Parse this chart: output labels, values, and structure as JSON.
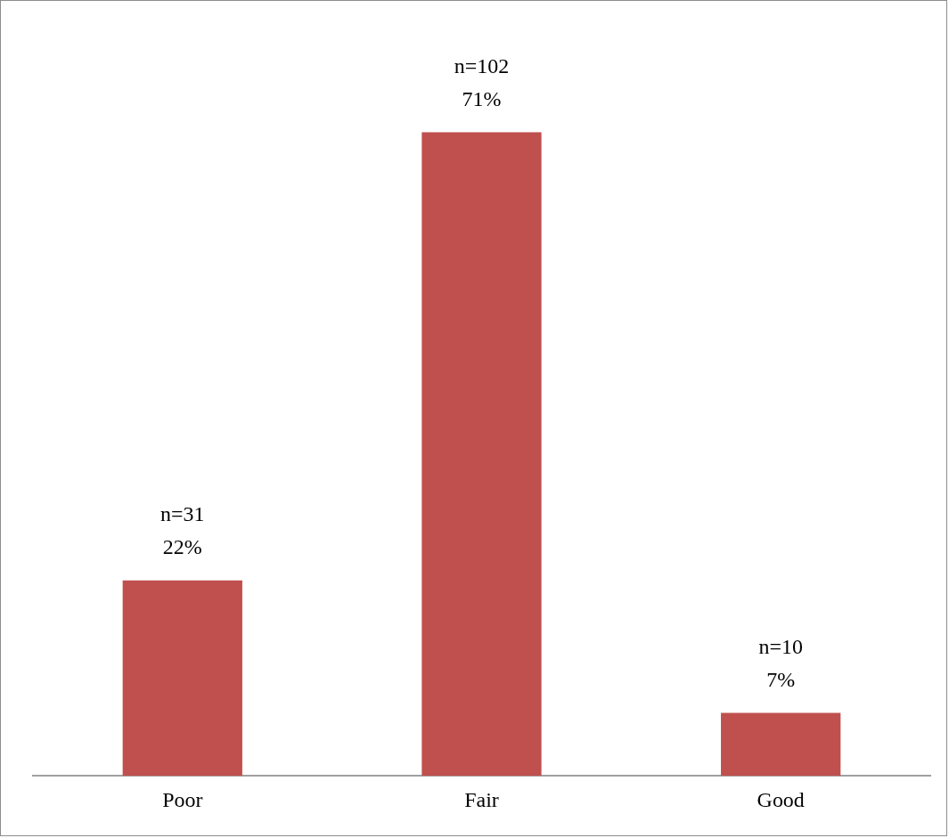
{
  "chart_data": {
    "type": "bar",
    "categories": [
      "Poor",
      "Fair",
      "Good"
    ],
    "values": [
      31,
      102,
      10
    ],
    "color": "#c0504d",
    "value_labels": [
      "n=31\n22%",
      "n=102\n71%",
      "n=10\n7%"
    ],
    "grid": false,
    "legend": false
  }
}
